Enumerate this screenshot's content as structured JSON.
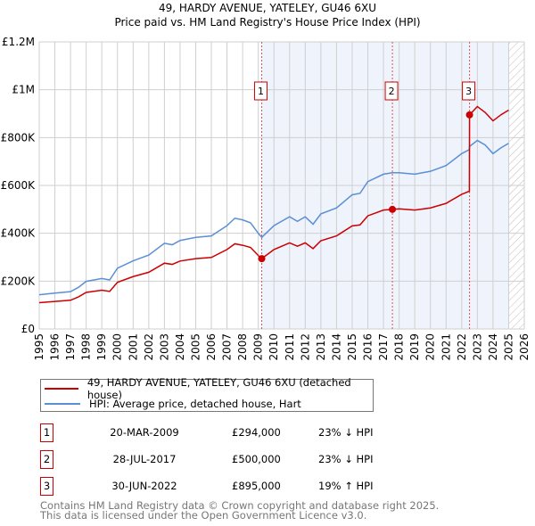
{
  "title": "49, HARDY AVENUE, YATELEY, GU46 6XU",
  "subtitle": "Price paid vs. HM Land Registry's House Price Index (HPI)",
  "chart_data": {
    "type": "line",
    "ylim": [
      0,
      1200000
    ],
    "xlim": [
      1995,
      2026
    ],
    "yticks": [
      {
        "v": 0,
        "label": "£0"
      },
      {
        "v": 200000,
        "label": "£200K"
      },
      {
        "v": 400000,
        "label": "£400K"
      },
      {
        "v": 600000,
        "label": "£600K"
      },
      {
        "v": 800000,
        "label": "£800K"
      },
      {
        "v": 1000000,
        "label": "£1M"
      },
      {
        "v": 1200000,
        "label": "£1.2M"
      }
    ],
    "xticks": [
      "1995",
      "1996",
      "1997",
      "1998",
      "1999",
      "2000",
      "2001",
      "2002",
      "2003",
      "2004",
      "2005",
      "2006",
      "2007",
      "2008",
      "2009",
      "2010",
      "2011",
      "2012",
      "2013",
      "2014",
      "2015",
      "2016",
      "2017",
      "2018",
      "2019",
      "2020",
      "2021",
      "2022",
      "2023",
      "2024",
      "2025",
      "2026"
    ],
    "x": [
      1995,
      1996,
      1997,
      1997.5,
      1998,
      1999,
      1999.5,
      2000,
      2001,
      2002,
      2003,
      2003.5,
      2004,
      2005,
      2006,
      2007,
      2007.5,
      2008,
      2008.5,
      2009,
      2009.22,
      2010,
      2011,
      2011.5,
      2012,
      2012.5,
      2013,
      2014,
      2015,
      2015.5,
      2016,
      2017,
      2017.57,
      2018,
      2019,
      2020,
      2021,
      2022,
      2022.49,
      2022.5,
      2023,
      2023.5,
      2024,
      2024.5,
      2025
    ],
    "series": [
      {
        "name": "49, HARDY AVENUE, YATELEY, GU46 6XU (detached house)",
        "color": "#cc0000",
        "values": [
          110,
          115,
          120,
          134,
          153,
          162,
          157,
          195,
          219,
          237,
          275,
          270,
          284,
          294,
          299,
          332,
          356,
          350,
          341,
          307,
          294,
          332,
          360,
          346,
          360,
          336,
          369,
          389,
          431,
          435,
          473,
          497,
          500,
          502,
          497,
          506,
          525,
          563,
          576,
          895,
          930,
          905,
          870,
          895,
          915
        ],
        "unit": "thousand GBP"
      },
      {
        "name": "HPI: Average price, detached house, Hart",
        "color": "#5b8fd4",
        "values": [
          143,
          150,
          156,
          174,
          199,
          211,
          205,
          254,
          285,
          309,
          358,
          352,
          370,
          383,
          389,
          432,
          463,
          456,
          444,
          400,
          383,
          432,
          469,
          450,
          469,
          438,
          481,
          506,
          561,
          567,
          616,
          647,
          653,
          653,
          647,
          659,
          683,
          733,
          750,
          763,
          788,
          769,
          733,
          757,
          776
        ],
        "unit": "thousand GBP"
      }
    ],
    "sales": [
      {
        "n": "1",
        "x": 2009.22,
        "v": 294
      },
      {
        "n": "2",
        "x": 2017.57,
        "v": 500
      },
      {
        "n": "3",
        "x": 2022.5,
        "v": 895
      }
    ],
    "shaded_from": 2009.22,
    "shaded_to": 2025,
    "hatched_from": 2025
  },
  "legend": [
    "49, HARDY AVENUE, YATELEY, GU46 6XU (detached house)",
    "HPI: Average price, detached house, Hart"
  ],
  "table": [
    {
      "n": "1",
      "date": "20-MAR-2009",
      "price": "£294,000",
      "hpi": "23% ↓ HPI"
    },
    {
      "n": "2",
      "date": "28-JUL-2017",
      "price": "£500,000",
      "hpi": "23% ↓ HPI"
    },
    {
      "n": "3",
      "date": "30-JUN-2022",
      "price": "£895,000",
      "hpi": "19% ↑ HPI"
    }
  ],
  "footer": [
    "Contains HM Land Registry data © Crown copyright and database right 2025.",
    "This data is licensed under the Open Government Licence v3.0."
  ]
}
